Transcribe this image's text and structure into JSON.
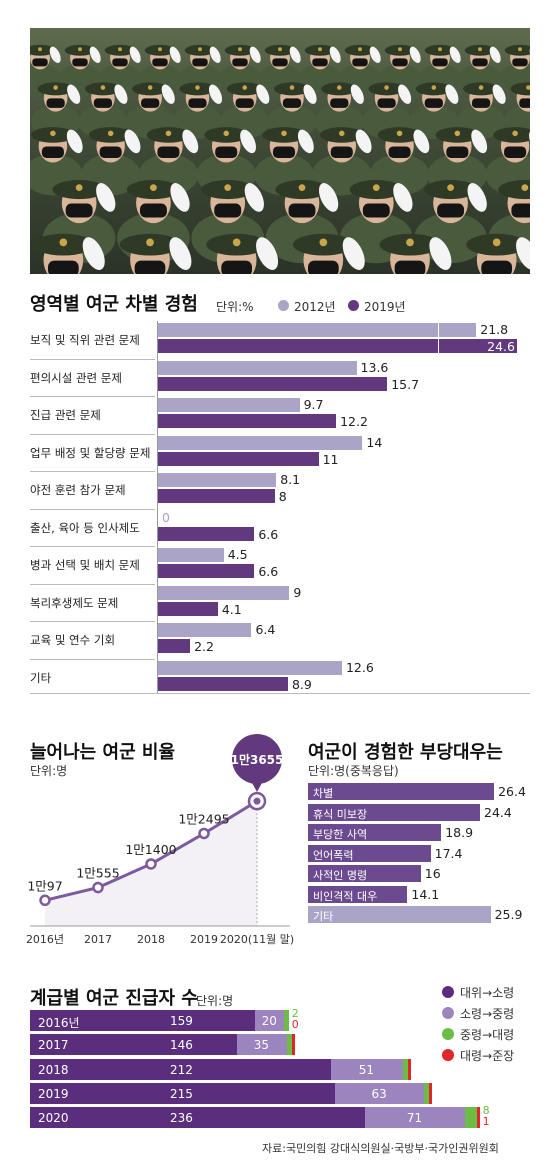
{
  "colors": {
    "y2012": "#aaa4c6",
    "y2019": "#62387f",
    "line": "#7d5a9e",
    "unfair_bar": "#6c4a8f",
    "unfair_last": "#aaa4c6",
    "promo_s1": "#5a2d7d",
    "promo_s2": "#9c84be",
    "promo_s3": "#6bbd45",
    "promo_s4": "#e0262b"
  },
  "photo": {
    "subject": "female-soldiers-saluting-photo"
  },
  "section1": {
    "title": "영역별 여군 차별 경험",
    "unit": "단위:%",
    "legend": [
      "2012년",
      "2019년"
    ]
  },
  "section2": {
    "title": "늘어나는 여군 비율",
    "unit": "단위:명"
  },
  "section3": {
    "title": "여군이 경험한 부당대우는",
    "unit": "단위:명(중복응답)"
  },
  "section4": {
    "title": "계급별 여군 진급자 수",
    "unit": "단위:명",
    "legend": [
      "대위→소령",
      "소령→중령",
      "중령→대령",
      "대령→준장"
    ]
  },
  "source": "자료:국민의힘 강대식의원실·국방부·국가인권위원회",
  "chart_data": [
    {
      "type": "bar",
      "orientation": "horizontal",
      "title": "영역별 여군 차별 경험",
      "unit": "단위:%",
      "categories": [
        "보직 및 직위 관련 문제",
        "편의시설 관련 문제",
        "진급 관련 문제",
        "업무 배정 및 할당량 문제",
        "야전 훈련 참가 문제",
        "출산, 육아 등 인사제도",
        "병과 선택 및 배치 문제",
        "복리후생제도 문제",
        "교육 및 연수 기회",
        "기타"
      ],
      "series": [
        {
          "name": "2012년",
          "values": [
            21.8,
            13.6,
            9.7,
            14,
            8.1,
            0,
            4.5,
            9,
            6.4,
            12.6
          ]
        },
        {
          "name": "2019년",
          "values": [
            24.6,
            15.7,
            12.2,
            11,
            8,
            6.6,
            6.6,
            4.1,
            2.2,
            8.9
          ]
        }
      ],
      "value_labels": [
        [
          "21.8",
          "13.6",
          "9.7",
          "14",
          "8.1",
          "0",
          "4.5",
          "9",
          "6.4",
          "12.6"
        ],
        [
          "24.6",
          "15.7",
          "12.2",
          "11",
          "8",
          "6.6",
          "6.6",
          "4.1",
          "2.2",
          "8.9"
        ]
      ],
      "legend": "top-right",
      "grid": false
    },
    {
      "type": "line",
      "title": "늘어나는 여군 비율",
      "unit": "단위:명",
      "x": [
        "2016년",
        "2017",
        "2018",
        "2019",
        "2020(11월 말)"
      ],
      "y": [
        10097,
        10555,
        11400,
        12495,
        13655
      ],
      "value_labels": [
        "1만97",
        "1만555",
        "1만1400",
        "1만2495",
        "1만3655"
      ],
      "grid": false
    },
    {
      "type": "bar",
      "orientation": "horizontal",
      "title": "여군이 경험한 부당대우는",
      "unit": "단위:명(중복응답)",
      "categories": [
        "차별",
        "휴식 미보장",
        "부당한 사역",
        "언어폭력",
        "사적인 명령",
        "비인격적 대우",
        "기타"
      ],
      "values": [
        26.4,
        24.4,
        18.9,
        17.4,
        16,
        14.1,
        25.9
      ],
      "value_labels": [
        "26.4",
        "24.4",
        "18.9",
        "17.4",
        "16",
        "14.1",
        "25.9"
      ],
      "grid": false
    },
    {
      "type": "bar",
      "orientation": "horizontal",
      "stacked": true,
      "title": "계급별 여군 진급자 수",
      "unit": "단위:명",
      "categories": [
        "2016년",
        "2017",
        "2018",
        "2019",
        "2020"
      ],
      "series": [
        {
          "name": "대위→소령",
          "values": [
            159,
            146,
            212,
            215,
            236
          ]
        },
        {
          "name": "소령→중령",
          "values": [
            20,
            35,
            51,
            63,
            71
          ]
        },
        {
          "name": "중령→대령",
          "values": [
            2,
            3,
            3,
            3,
            8
          ]
        },
        {
          "name": "대령→준장",
          "values": [
            0,
            1,
            1,
            1,
            1
          ]
        }
      ],
      "value_labels": [
        [
          "159",
          "146",
          "212",
          "215",
          "236"
        ],
        [
          "20",
          "35",
          "51",
          "63",
          "71"
        ],
        [
          "2",
          "",
          "",
          "",
          "8"
        ],
        [
          "0",
          "",
          "",
          "",
          "1"
        ]
      ],
      "legend": "top-right",
      "grid": false
    }
  ]
}
